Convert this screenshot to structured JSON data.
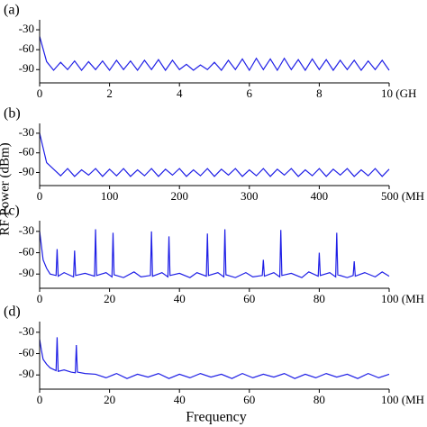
{
  "xlabel": "Frequency",
  "ylabel": "RF Power (dBm)",
  "chart_data": [
    {
      "type": "line",
      "label": "(a)",
      "color": "#1f1fe6",
      "x": [
        0,
        0.2,
        0.4,
        0.6,
        0.8,
        1,
        1.2,
        1.4,
        1.6,
        1.8,
        2,
        2.2,
        2.4,
        2.6,
        2.8,
        3,
        3.2,
        3.4,
        3.6,
        3.8,
        4,
        4.2,
        4.4,
        4.6,
        4.8,
        5,
        5.2,
        5.4,
        5.6,
        5.8,
        6,
        6.2,
        6.4,
        6.6,
        6.8,
        7,
        7.2,
        7.4,
        7.6,
        7.8,
        8,
        8.2,
        8.4,
        8.6,
        8.8,
        9,
        9.2,
        9.4,
        9.6,
        9.8,
        10
      ],
      "values": [
        -40,
        -78,
        -91,
        -79,
        -90,
        -77,
        -91,
        -78,
        -90,
        -77,
        -91,
        -76,
        -90,
        -77,
        -91,
        -76,
        -90,
        -75,
        -91,
        -76,
        -90,
        -82,
        -91,
        -83,
        -90,
        -79,
        -91,
        -76,
        -90,
        -74,
        -91,
        -73,
        -90,
        -74,
        -91,
        -73,
        -90,
        -75,
        -91,
        -74,
        -90,
        -75,
        -91,
        -76,
        -90,
        -76,
        -91,
        -77,
        -90,
        -76,
        -91
      ],
      "xlim": [
        0,
        10
      ],
      "xticks": [
        0,
        2,
        4,
        6,
        8,
        {
          "value": 10,
          "label": "10 (GH"
        }
      ],
      "ylim": [
        -110,
        -15
      ],
      "yticks": [
        -30,
        -60,
        -90
      ]
    },
    {
      "type": "line",
      "label": "(b)",
      "color": "#1f1fe6",
      "x": [
        0,
        10,
        20,
        30,
        40,
        50,
        60,
        70,
        80,
        90,
        100,
        110,
        120,
        130,
        140,
        150,
        160,
        170,
        180,
        190,
        200,
        210,
        220,
        230,
        240,
        250,
        260,
        270,
        280,
        290,
        300,
        310,
        320,
        330,
        340,
        350,
        360,
        370,
        380,
        390,
        400,
        410,
        420,
        430,
        440,
        450,
        460,
        470,
        480,
        490,
        500
      ],
      "values": [
        -30,
        -75,
        -85,
        -95,
        -84,
        -96,
        -86,
        -94,
        -84,
        -96,
        -85,
        -95,
        -84,
        -96,
        -86,
        -95,
        -84,
        -96,
        -85,
        -94,
        -84,
        -96,
        -86,
        -95,
        -84,
        -96,
        -85,
        -94,
        -84,
        -96,
        -86,
        -95,
        -84,
        -96,
        -85,
        -94,
        -84,
        -96,
        -86,
        -95,
        -84,
        -96,
        -85,
        -94,
        -84,
        -96,
        -86,
        -95,
        -84,
        -96,
        -85
      ],
      "xlim": [
        0,
        500
      ],
      "xticks": [
        0,
        100,
        200,
        300,
        400,
        {
          "value": 500,
          "label": "500 (MH"
        }
      ],
      "ylim": [
        -110,
        -15
      ],
      "yticks": [
        -30,
        -60,
        -90
      ]
    },
    {
      "type": "line",
      "label": "(c)",
      "color": "#1f1fe6",
      "x": [
        0,
        1,
        2,
        3,
        4.7,
        5,
        5.3,
        7,
        9.7,
        10,
        10.3,
        13,
        15.7,
        16,
        16.3,
        19,
        20.7,
        21,
        21.3,
        24,
        27,
        29,
        31.7,
        32,
        32.3,
        35,
        36.7,
        37,
        37.3,
        40,
        43,
        45,
        47.7,
        48,
        48.3,
        51,
        52.7,
        53,
        53.3,
        56,
        59,
        61,
        63.7,
        64,
        64.3,
        67,
        68.7,
        69,
        69.3,
        72,
        75,
        77,
        79.7,
        80,
        80.3,
        83,
        84.7,
        85,
        85.3,
        88,
        89.7,
        90,
        90.3,
        93,
        96,
        98,
        100
      ],
      "values": [
        -30,
        -70,
        -82,
        -90,
        -92,
        -55,
        -93,
        -88,
        -94,
        -57,
        -92,
        -89,
        -93,
        -27,
        -92,
        -88,
        -94,
        -32,
        -91,
        -95,
        -87,
        -94,
        -92,
        -30,
        -93,
        -88,
        -94,
        -37,
        -92,
        -89,
        -95,
        -88,
        -93,
        -33,
        -92,
        -88,
        -94,
        -27,
        -91,
        -95,
        -88,
        -94,
        -92,
        -70,
        -93,
        -88,
        -94,
        -28,
        -92,
        -89,
        -95,
        -87,
        -93,
        -60,
        -92,
        -88,
        -94,
        -32,
        -91,
        -95,
        -92,
        -72,
        -93,
        -88,
        -94,
        -87,
        -93
      ],
      "xlim": [
        0,
        100
      ],
      "xticks": [
        0,
        20,
        40,
        60,
        80,
        {
          "value": 100,
          "label": "100 (MH"
        }
      ],
      "ylim": [
        -110,
        -15
      ],
      "yticks": [
        -30,
        -60,
        -90
      ]
    },
    {
      "type": "line",
      "label": "(d)",
      "color": "#1f1fe6",
      "x": [
        0,
        0.5,
        1,
        2,
        3,
        4.7,
        5,
        5.3,
        7,
        9,
        10.2,
        10.5,
        10.8,
        13,
        16,
        19,
        22,
        25,
        28,
        31,
        34,
        37,
        40,
        43,
        46,
        49,
        52,
        55,
        58,
        61,
        64,
        67,
        70,
        73,
        76,
        79,
        82,
        85,
        88,
        91,
        94,
        97,
        100
      ],
      "values": [
        -40,
        -55,
        -68,
        -75,
        -80,
        -84,
        -37,
        -85,
        -83,
        -86,
        -87,
        -48,
        -86,
        -88,
        -89,
        -94,
        -88,
        -95,
        -89,
        -93,
        -88,
        -95,
        -89,
        -94,
        -88,
        -93,
        -89,
        -95,
        -88,
        -94,
        -89,
        -93,
        -88,
        -95,
        -89,
        -94,
        -88,
        -93,
        -89,
        -95,
        -88,
        -94,
        -89
      ],
      "xlim": [
        0,
        100
      ],
      "xticks": [
        0,
        20,
        40,
        60,
        80,
        {
          "value": 100,
          "label": "100 (MH"
        }
      ],
      "ylim": [
        -110,
        -15
      ],
      "yticks": [
        -30,
        -60,
        -90
      ]
    }
  ]
}
